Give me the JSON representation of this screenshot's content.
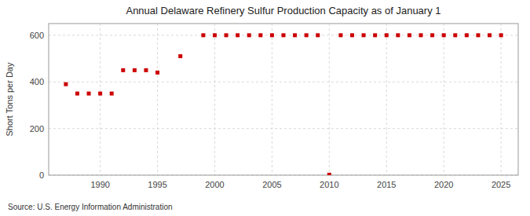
{
  "chart_data": {
    "type": "scatter",
    "title": "Annual Delaware Refinery Sulfur Production Capacity as of January 1",
    "ylabel": "Short Tons per Day",
    "source": "Source: U.S. Energy Information Administration",
    "x": [
      1987,
      1988,
      1989,
      1990,
      1991,
      1992,
      1993,
      1994,
      1995,
      1997,
      1999,
      2000,
      2001,
      2002,
      2003,
      2004,
      2005,
      2006,
      2007,
      2008,
      2009,
      2010,
      2011,
      2012,
      2013,
      2014,
      2015,
      2016,
      2017,
      2018,
      2019,
      2020,
      2021,
      2022,
      2023,
      2024,
      2025
    ],
    "values": [
      390,
      350,
      350,
      350,
      350,
      450,
      450,
      450,
      440,
      510,
      600,
      600,
      600,
      600,
      600,
      600,
      600,
      600,
      600,
      600,
      600,
      2,
      600,
      600,
      600,
      600,
      600,
      600,
      600,
      600,
      600,
      600,
      600,
      600,
      600,
      600,
      600
    ],
    "color": "#cc0000",
    "marker": "square",
    "xlim": [
      1985.5,
      2026.5
    ],
    "ylim": [
      0,
      650
    ],
    "xticks": [
      1990,
      1995,
      2000,
      2005,
      2010,
      2015,
      2020,
      2025
    ],
    "yticks": [
      0,
      200,
      400,
      600
    ],
    "grid": true
  }
}
